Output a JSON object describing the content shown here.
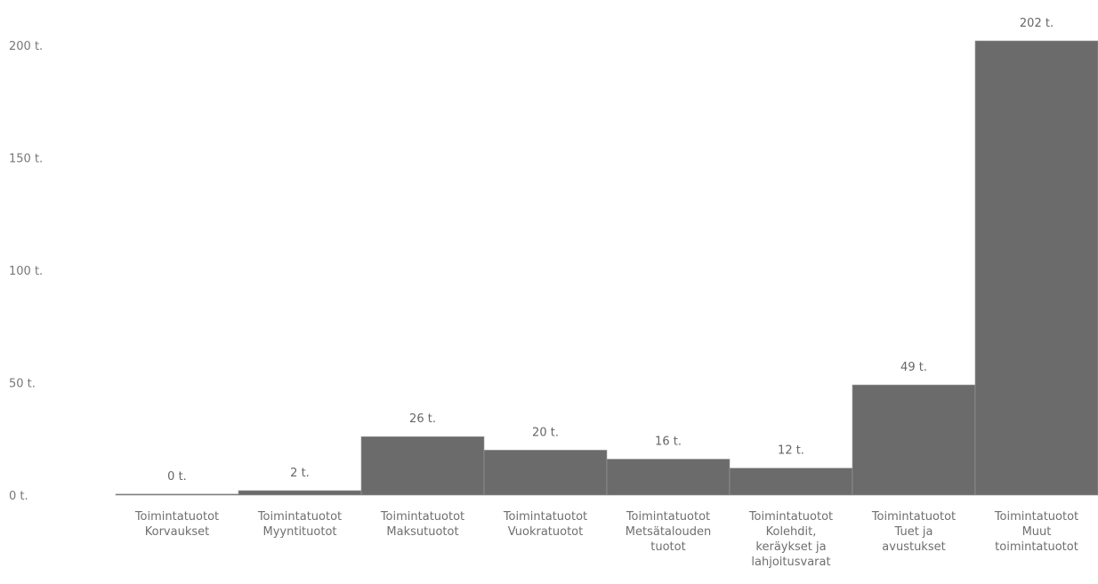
{
  "chart_data": {
    "type": "bar",
    "categories": [
      [
        "Toimintatuotot",
        "Korvaukset"
      ],
      [
        "Toimintatuotot",
        "Myyntituotot"
      ],
      [
        "Toimintatuotot",
        "Maksutuotot"
      ],
      [
        "Toimintatuotot",
        "Vuokratuotot"
      ],
      [
        "Toimintatuotot",
        "Metsätalouden",
        "tuotot"
      ],
      [
        "Toimintatuotot",
        "Kolehdit,",
        "keräykset ja",
        "lahjoitusvarat"
      ],
      [
        "Toimintatuotot",
        "Tuet ja",
        "avustukset"
      ],
      [
        "Toimintatuotot",
        "Muut",
        "toimintatuotot"
      ]
    ],
    "values": [
      0.3,
      2,
      26,
      20,
      16,
      12,
      49,
      202
    ],
    "data_labels": [
      "0 t.",
      "2 t.",
      "26 t.",
      "20 t.",
      "16 t.",
      "12 t.",
      "49 t.",
      "202 t."
    ],
    "yticks": [
      0,
      50,
      100,
      150,
      200
    ],
    "ytick_labels": [
      "0 t.",
      "50 t.",
      "100 t.",
      "150 t.",
      "200 t."
    ],
    "ylim": [
      0,
      202
    ],
    "title": "",
    "xlabel": "",
    "ylabel": "",
    "grid": false,
    "bar_color": "#6b6b6b",
    "bar_edge_color": "#999999"
  }
}
